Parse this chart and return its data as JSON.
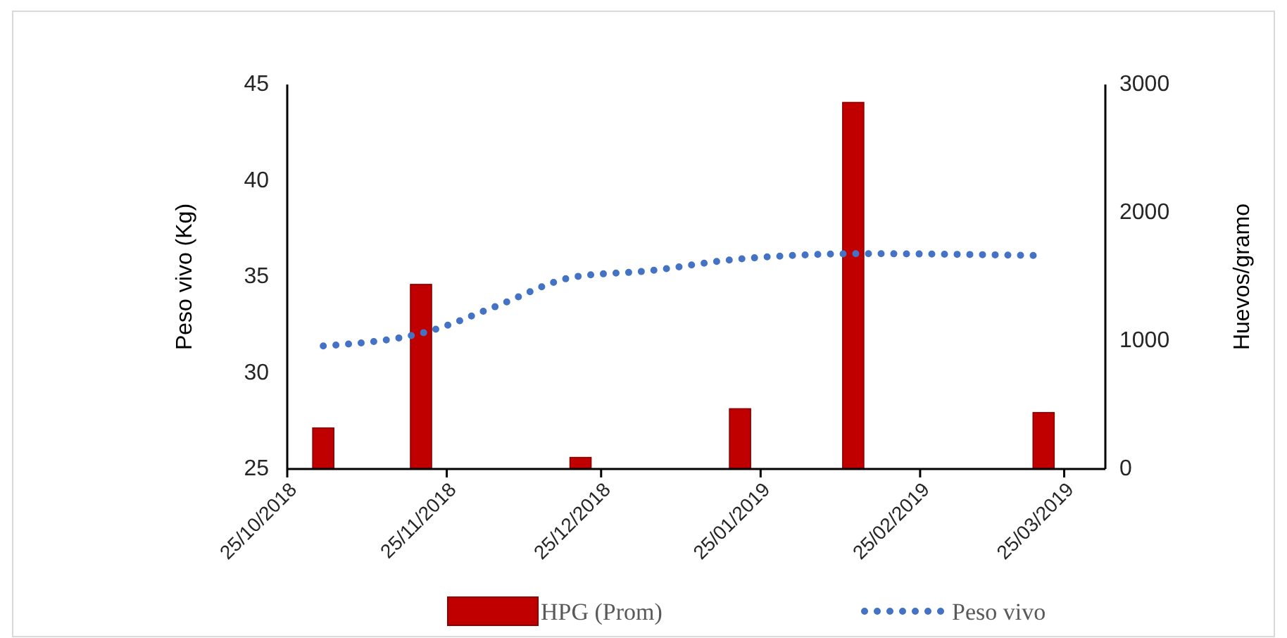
{
  "chart_data": {
    "type": "bar",
    "ylabel": "Peso vivo (Kg)",
    "y2label": "Huevos/gramo",
    "xlim": [
      "2018-10-25",
      "2019-04-02"
    ],
    "xticks": [
      {
        "value": "2018-10-25",
        "label": "25/10/2018"
      },
      {
        "value": "2018-11-25",
        "label": "25/11/2018"
      },
      {
        "value": "2018-12-25",
        "label": "25/12/2018"
      },
      {
        "value": "2019-01-25",
        "label": "25/01/2019"
      },
      {
        "value": "2019-02-25",
        "label": "25/02/2019"
      },
      {
        "value": "2019-03-25",
        "label": "25/03/2019"
      }
    ],
    "ylim": [
      25,
      45
    ],
    "yticks": [
      25,
      30,
      35,
      40,
      45
    ],
    "y2lim": [
      0,
      3000
    ],
    "y2ticks": [
      0,
      1000,
      2000,
      3000
    ],
    "grid": false,
    "legend": "bottom",
    "series": [
      {
        "name": "HPG (Prom)",
        "type": "bar",
        "axis": "y2",
        "color": "#c00000",
        "x": [
          "2018-11-01",
          "2018-11-20",
          "2018-12-21",
          "2019-01-21",
          "2019-02-12",
          "2019-03-21"
        ],
        "values": [
          320,
          1440,
          90,
          470,
          2860,
          440
        ]
      },
      {
        "name": "Peso vivo",
        "type": "line",
        "axis": "y",
        "color": "#4472c4",
        "line_style": "dotted",
        "marker": "none",
        "x": [
          "2018-11-01",
          "2018-11-22",
          "2018-12-04",
          "2018-12-20",
          "2019-01-03",
          "2019-01-20",
          "2019-02-14",
          "2019-03-21"
        ],
        "values": [
          31.4,
          32.2,
          33.4,
          35.0,
          35.3,
          35.9,
          36.2,
          36.1
        ]
      }
    ]
  }
}
